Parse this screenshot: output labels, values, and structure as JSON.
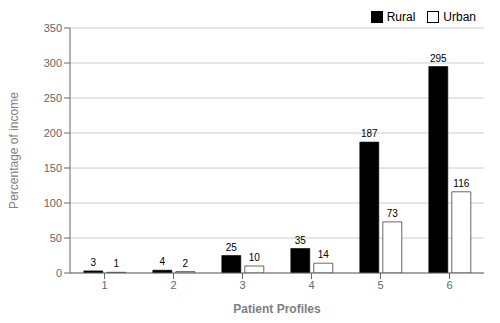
{
  "chart_data": {
    "type": "bar",
    "categories": [
      "1",
      "2",
      "3",
      "4",
      "5",
      "6"
    ],
    "series": [
      {
        "name": "Rural",
        "color": "#000000",
        "values": [
          3,
          4,
          25,
          35,
          187,
          295
        ]
      },
      {
        "name": "Urban",
        "color": "#ffffff",
        "values": [
          1,
          2,
          10,
          14,
          73,
          116
        ]
      }
    ],
    "xlabel": "Patient Profiles",
    "ylabel": "Percentage of income",
    "ylim": [
      0,
      350
    ],
    "yticks": [
      0,
      50,
      100,
      150,
      200,
      250,
      300,
      350
    ],
    "grid": true,
    "legend": "upper right",
    "data_labels": true
  }
}
